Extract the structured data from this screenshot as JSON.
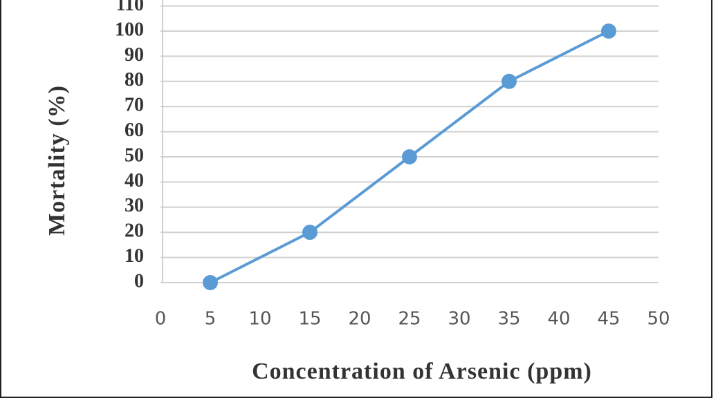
{
  "chart_data": {
    "type": "line",
    "x_label": "Concentration of Arsenic (ppm)",
    "y_label": "Mortality (%)",
    "x": [
      5,
      15,
      25,
      35,
      45
    ],
    "values": [
      0,
      20,
      50,
      80,
      100
    ],
    "color": "#5b9bd5",
    "xlim": [
      0,
      50
    ],
    "xticks": [
      0,
      5,
      10,
      15,
      20,
      25,
      30,
      35,
      40,
      45,
      50
    ],
    "ylim": [
      0,
      110
    ],
    "yticks": [
      0,
      10,
      20,
      30,
      40,
      50,
      60,
      70,
      80,
      90,
      100,
      110
    ],
    "grid": true
  }
}
